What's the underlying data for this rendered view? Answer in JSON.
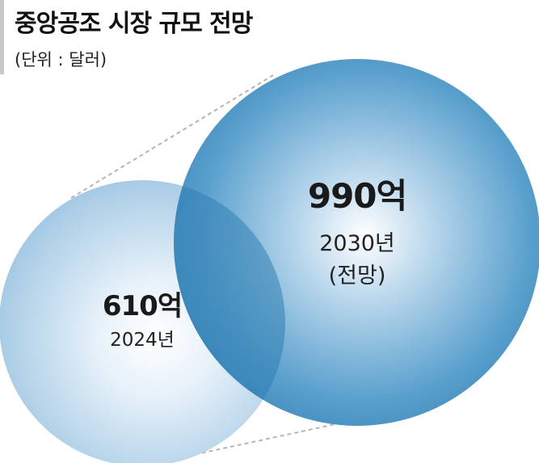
{
  "title": "중앙공조 시장 규모 전망",
  "unit_note": "(단위 : 달러)",
  "colors": {
    "small_circle": "#a9cce6",
    "small_circle_center": "#ffffff",
    "large_circle": "#3d8ec0",
    "large_circle_center": "#ffffff",
    "guide_line": "#b5b5b5"
  },
  "chart_data": {
    "type": "bubble",
    "title": "중앙공조 시장 규모 전망",
    "unit": "(단위 : 달러)",
    "series": [
      {
        "value_label": "610억",
        "value": 61000000000,
        "year_label": "2024년",
        "year": 2024,
        "note": ""
      },
      {
        "value_label": "990억",
        "value": 99000000000,
        "year_label": "2030년",
        "year": 2030,
        "note": "(전망)"
      }
    ]
  }
}
